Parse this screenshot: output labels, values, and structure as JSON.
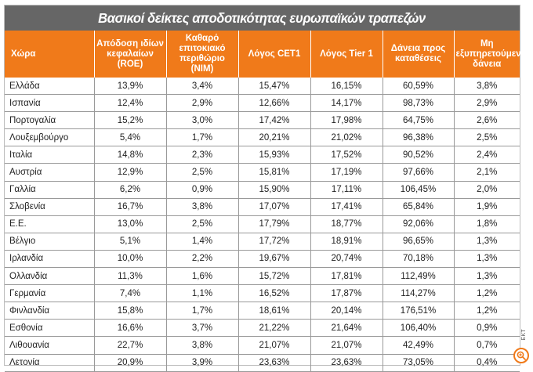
{
  "title": "Βασικοί δείκτες αποδοτικότητας ευρωπαϊκών τραπεζών",
  "columns": [
    "Χώρα",
    "Απόδοση ιδίων κεφαλαίων (ROE)",
    "Καθαρό επιτοκιακό περιθώριο (NIM)",
    "Λόγος CET1",
    "Λόγος Tier 1",
    "Δάνεια προς καταθέσεις",
    "Μη εξυπηρετούμενα δάνεια"
  ],
  "rows": [
    [
      "Ελλάδα",
      "13,9%",
      "3,4%",
      "15,47%",
      "16,15%",
      "60,59%",
      "3,8%"
    ],
    [
      "Ισπανία",
      "12,4%",
      "2,9%",
      "12,66%",
      "14,17%",
      "98,73%",
      "2,9%"
    ],
    [
      "Πορτογαλία",
      "15,2%",
      "3,0%",
      "17,42%",
      "17,98%",
      "64,75%",
      "2,6%"
    ],
    [
      "Λουξεμβούργο",
      "5,4%",
      "1,7%",
      "20,21%",
      "21,02%",
      "96,38%",
      "2,5%"
    ],
    [
      "Ιταλία",
      "14,8%",
      "2,3%",
      "15,93%",
      "17,52%",
      "90,52%",
      "2,4%"
    ],
    [
      "Αυστρία",
      "12,9%",
      "2,5%",
      "15,81%",
      "17,19%",
      "97,66%",
      "2,1%"
    ],
    [
      "Γαλλία",
      "6,2%",
      "0,9%",
      "15,90%",
      "17,11%",
      "106,45%",
      "2,0%"
    ],
    [
      "Σλοβενία",
      "16,7%",
      "3,8%",
      "17,07%",
      "17,41%",
      "65,84%",
      "1,9%"
    ],
    [
      "Ε.Ε.",
      "13,0%",
      "2,5%",
      "17,79%",
      "18,77%",
      "92,06%",
      "1,8%"
    ],
    [
      "Βέλγιο",
      "5,1%",
      "1,4%",
      "17,72%",
      "18,91%",
      "96,65%",
      "1,3%"
    ],
    [
      "Ιρλανδία",
      "10,0%",
      "2,2%",
      "19,67%",
      "20,74%",
      "70,18%",
      "1,3%"
    ],
    [
      "Ολλανδία",
      "11,3%",
      "1,6%",
      "15,72%",
      "17,81%",
      "112,49%",
      "1,3%"
    ],
    [
      "Γερμανία",
      "7,4%",
      "1,1%",
      "16,52%",
      "17,87%",
      "114,27%",
      "1,2%"
    ],
    [
      "Φινλανδία",
      "15,8%",
      "1,7%",
      "18,61%",
      "20,14%",
      "176,51%",
      "1,2%"
    ],
    [
      "Εσθονία",
      "16,6%",
      "3,7%",
      "21,22%",
      "21,64%",
      "106,40%",
      "0,9%"
    ],
    [
      "Λιθουανία",
      "22,7%",
      "3,8%",
      "21,07%",
      "21,07%",
      "42,49%",
      "0,7%"
    ],
    [
      "Λετονία",
      "20,9%",
      "3,9%",
      "23,63%",
      "23,63%",
      "73,05%",
      "0,4%"
    ]
  ],
  "credit": "ΕΚΤ",
  "colors": {
    "title_background": "#666666",
    "header_background": "#f07a1a",
    "header_text": "#ffffff",
    "grid_line": "#999999"
  },
  "icons": {
    "zoom": "zoom-in-icon"
  }
}
